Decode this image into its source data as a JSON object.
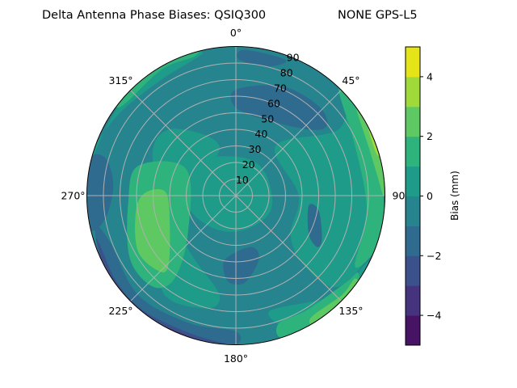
{
  "chart_data": {
    "type": "heatmap",
    "subtype": "polar-contourf",
    "title_left": "Delta Antenna Phase Biases: QSIQ300",
    "title_right": "NONE GPS-L5",
    "angular_ticks": [
      {
        "az": 0,
        "label": "0°"
      },
      {
        "az": 45,
        "label": "45°"
      },
      {
        "az": 90,
        "label": "90"
      },
      {
        "az": 135,
        "label": "135°"
      },
      {
        "az": 180,
        "label": "180°"
      },
      {
        "az": 225,
        "label": "225°"
      },
      {
        "az": 270,
        "label": "270°"
      },
      {
        "az": 315,
        "label": "315°"
      }
    ],
    "radial_ticks": [
      10,
      20,
      30,
      40,
      50,
      60,
      70,
      80,
      90
    ],
    "radial_labels": [
      "10",
      "20",
      "30",
      "40",
      "50",
      "60",
      "70",
      "80",
      "90"
    ],
    "rmax": 90,
    "levels": [
      -5,
      -4,
      -3,
      -2,
      -1,
      0,
      1,
      2,
      3,
      4,
      5
    ],
    "level_colors": [
      "#471365",
      "#45337d",
      "#3b518b",
      "#2f6b8e",
      "#25848e",
      "#1e9c89",
      "#2eb37c",
      "#5ec962",
      "#9fda3a",
      "#e5e419"
    ],
    "base_level_index": 4,
    "regions_note": "approximate contour regions; points are [east, north] in zenith-angle units",
    "regions": [
      {
        "level": 5,
        "pts": [
          [
            -25,
            20
          ],
          [
            4,
            23
          ],
          [
            18,
            13
          ],
          [
            21,
            -9
          ],
          [
            4,
            -21
          ],
          [
            -15,
            -19
          ],
          [
            -30,
            -4
          ]
        ]
      },
      {
        "level": 5,
        "pts": [
          [
            24,
            30
          ],
          [
            62,
            40
          ],
          [
            70,
            64
          ],
          [
            80,
            30
          ],
          [
            89,
            1
          ],
          [
            84,
            -30
          ],
          [
            62,
            -55
          ],
          [
            42,
            -43
          ],
          [
            33,
            -24
          ],
          [
            38,
            0
          ]
        ]
      },
      {
        "level": 5,
        "pts": [
          [
            -40,
            40
          ],
          [
            -10,
            30
          ],
          [
            -28,
            0
          ],
          [
            -45,
            -55
          ],
          [
            -20,
            -68
          ],
          [
            -10,
            -60
          ],
          [
            -30,
            -30
          ],
          [
            -50,
            20
          ]
        ]
      },
      {
        "level": 5,
        "pts": [
          [
            20,
            -70
          ],
          [
            60,
            -60
          ],
          [
            80,
            -40
          ],
          [
            70,
            -68
          ],
          [
            40,
            -82
          ]
        ]
      },
      {
        "level": 5,
        "pts": [
          [
            -85,
            30
          ],
          [
            -70,
            50
          ],
          [
            -45,
            70
          ],
          [
            -20,
            86
          ],
          [
            -40,
            82
          ],
          [
            -70,
            55
          ],
          [
            -88,
            20
          ]
        ]
      },
      {
        "level": 6,
        "pts": [
          [
            -59,
            18
          ],
          [
            -30,
            16
          ],
          [
            -29,
            -23
          ],
          [
            -37,
            -50
          ],
          [
            -50,
            -55
          ],
          [
            -64,
            -38
          ],
          [
            -65,
            -4
          ]
        ]
      },
      {
        "level": 6,
        "pts": [
          [
            62,
            64
          ],
          [
            72,
            30
          ],
          [
            79,
            -9
          ],
          [
            72,
            -43
          ],
          [
            87,
            -28
          ],
          [
            89,
            1
          ],
          [
            84,
            35
          ],
          [
            68,
            66
          ]
        ]
      },
      {
        "level": 6,
        "pts": [
          [
            26,
            -77
          ],
          [
            43,
            -69
          ],
          [
            67,
            -52
          ],
          [
            74,
            -47
          ],
          [
            72,
            -65
          ],
          [
            52,
            -81
          ],
          [
            28,
            -86
          ]
        ]
      },
      {
        "level": 6,
        "pts": [
          [
            -69,
            54
          ],
          [
            -45,
            76
          ],
          [
            -25,
            84
          ],
          [
            -25,
            88
          ],
          [
            -52,
            76
          ],
          [
            -74,
            59
          ]
        ]
      },
      {
        "level": 7,
        "pts": [
          [
            -54.5,
            1.9
          ],
          [
            -42.3,
            1.9
          ],
          [
            -39.9,
            -18.5
          ],
          [
            -40.9,
            -42.8
          ],
          [
            -47.2,
            -45.2
          ],
          [
            -59.3,
            -33.1
          ],
          [
            -60.3,
            -8.8
          ]
        ]
      },
      {
        "level": 7,
        "pts": [
          [
            72,
            55
          ],
          [
            80,
            30
          ],
          [
            86,
            10
          ],
          [
            89,
            0
          ],
          [
            90,
            5
          ],
          [
            86,
            35
          ],
          [
            75,
            58
          ]
        ]
      },
      {
        "level": 7,
        "pts": [
          [
            45,
            -74
          ],
          [
            64,
            -60
          ],
          [
            72,
            -50
          ],
          [
            74,
            -58
          ],
          [
            62,
            -72
          ],
          [
            50,
            -80
          ]
        ]
      },
      {
        "level": 8,
        "pts": [
          [
            78,
            48
          ],
          [
            85,
            25
          ],
          [
            88,
            30
          ],
          [
            82,
            48
          ]
        ]
      },
      {
        "level": 8,
        "pts": [
          [
            62,
            -68
          ],
          [
            70,
            -58
          ],
          [
            72,
            -62
          ],
          [
            65,
            -70
          ]
        ]
      },
      {
        "level": 9,
        "pts": [
          [
            79,
            46
          ],
          [
            86,
            30
          ],
          [
            87,
            34
          ],
          [
            81,
            46
          ]
        ]
      },
      {
        "level": 3,
        "pts": [
          [
            0,
            64
          ],
          [
            28,
            66
          ],
          [
            50,
            54
          ],
          [
            55,
            42
          ],
          [
            43,
            40
          ],
          [
            14,
            47
          ],
          [
            -1,
            54
          ]
        ]
      },
      {
        "level": 3,
        "pts": [
          [
            44,
            -6
          ],
          [
            50,
            -9
          ],
          [
            52,
            -26
          ],
          [
            49,
            -31
          ],
          [
            44,
            -23
          ]
        ]
      },
      {
        "level": 3,
        "pts": [
          [
            -6,
            -38
          ],
          [
            9,
            -31
          ],
          [
            14,
            -38
          ],
          [
            6,
            -52
          ],
          [
            -3,
            -53
          ],
          [
            -7,
            -47
          ]
        ]
      },
      {
        "level": 3,
        "pts": [
          [
            -89,
            20
          ],
          [
            -79,
            23
          ],
          [
            -74,
            6
          ],
          [
            -79,
            -14
          ],
          [
            -88,
            -19
          ]
        ]
      },
      {
        "level": 3,
        "pts": [
          [
            5,
            88
          ],
          [
            30,
            82
          ],
          [
            20,
            78
          ],
          [
            2,
            82
          ]
        ]
      },
      {
        "level": 3,
        "pts": [
          [
            -85,
            -19
          ],
          [
            -79,
            -48
          ],
          [
            -62,
            -70
          ],
          [
            -30,
            -86
          ],
          [
            -1,
            -90
          ],
          [
            0,
            -82
          ],
          [
            -28,
            -77
          ],
          [
            -59,
            -60
          ],
          [
            -76,
            -28
          ]
        ]
      },
      {
        "level": 2,
        "pts": [
          [
            -84,
            -28
          ],
          [
            -74,
            -58
          ],
          [
            -54,
            -75
          ],
          [
            -25,
            -87
          ],
          [
            0,
            -91
          ],
          [
            -25,
            -84
          ],
          [
            -55,
            -70
          ],
          [
            -72,
            -52
          ],
          [
            -82,
            -30
          ]
        ]
      },
      {
        "level": 1,
        "pts": [
          [
            -74,
            -55
          ],
          [
            -52,
            -76
          ],
          [
            -25,
            -89
          ],
          [
            -8,
            -91
          ],
          [
            -25,
            -86
          ],
          [
            -50,
            -75
          ],
          [
            -70,
            -58
          ]
        ]
      },
      {
        "level": 0,
        "pts": [
          [
            -66,
            -64
          ],
          [
            -48,
            -79
          ],
          [
            -25,
            -89
          ],
          [
            -45,
            -80
          ],
          [
            -62,
            -68
          ]
        ]
      }
    ],
    "colorbar": {
      "label": "Bias (mm)",
      "ticks": [
        4,
        2,
        0,
        -2,
        -4
      ],
      "tick_labels": [
        "4",
        "2",
        "0",
        "−2",
        "−4"
      ],
      "range": [
        -5,
        5
      ]
    }
  }
}
